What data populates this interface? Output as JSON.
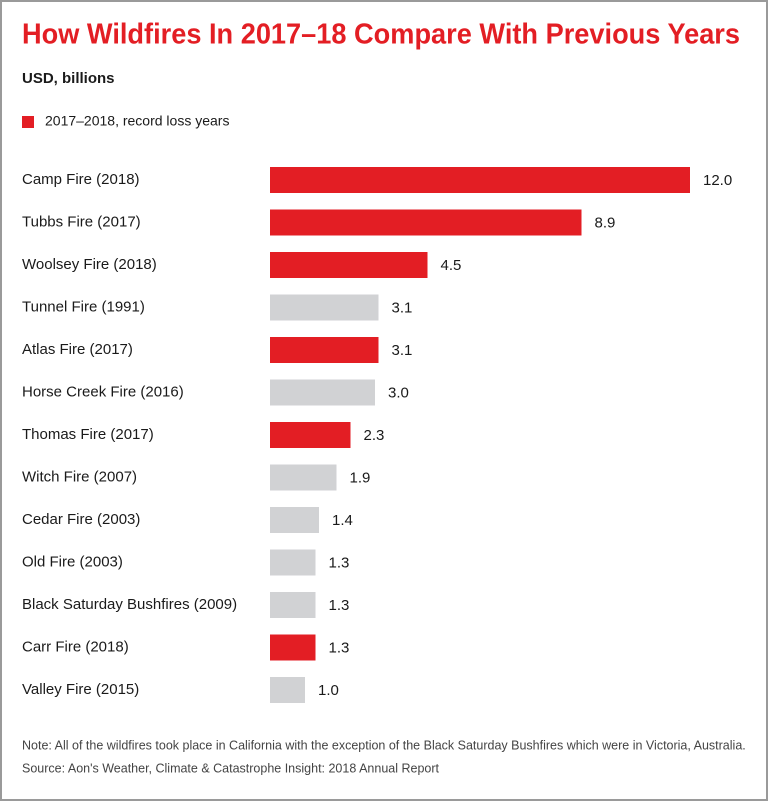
{
  "chart_data": {
    "type": "bar",
    "orientation": "horizontal",
    "title": "How Wildfires In 2017–18 Compare With Previous Years",
    "subtitle": "USD, billions",
    "legend": [
      {
        "name": "2017–2018, record loss years",
        "color": "#e31e24"
      }
    ],
    "categories": [
      "Camp Fire (2018)",
      "Tubbs Fire (2017)",
      "Woolsey Fire (2018)",
      "Tunnel Fire (1991)",
      "Atlas Fire (2017)",
      "Horse Creek Fire (2016)",
      "Thomas Fire (2017)",
      "Witch Fire (2007)",
      "Cedar Fire (2003)",
      "Old Fire (2003)",
      "Black Saturday Bushfires (2009)",
      "Carr Fire (2018)",
      "Valley Fire (2015)"
    ],
    "values": [
      12.0,
      8.9,
      4.5,
      3.1,
      3.1,
      3.0,
      2.3,
      1.9,
      1.4,
      1.3,
      1.3,
      1.3,
      1.0
    ],
    "value_labels": [
      "12.0",
      "8.9",
      "4.5",
      "3.1",
      "3.1",
      "3.0",
      "2.3",
      "1.9",
      "1.4",
      "1.3",
      "1.3",
      "1.3",
      "1.0"
    ],
    "colors": [
      "#e31e24",
      "#e31e24",
      "#e31e24",
      "#d1d2d4",
      "#e31e24",
      "#d1d2d4",
      "#e31e24",
      "#d1d2d4",
      "#d1d2d4",
      "#d1d2d4",
      "#d1d2d4",
      "#e31e24",
      "#d1d2d4"
    ],
    "notes": [
      "Note: All of the wildfires took place in California with the exception of the Black Saturday Bushfires which were in Victoria, Australia.",
      "Source: Aon's Weather, Climate & Catastrophe Insight: 2018 Annual Report"
    ]
  }
}
